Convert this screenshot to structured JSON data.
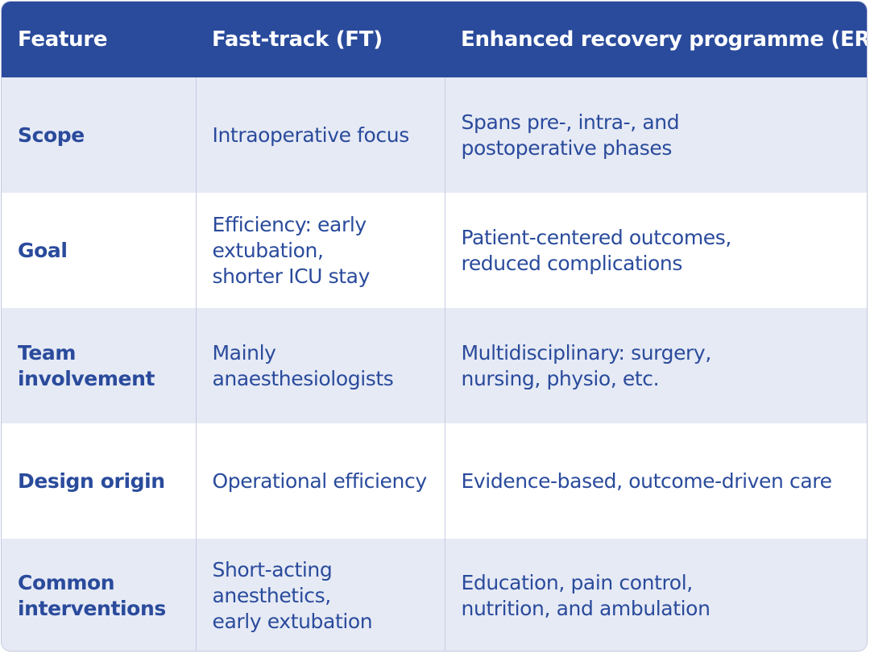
{
  "header": {
    "feature": "Feature",
    "fast_track": "Fast-track (FT)",
    "erp": "Enhanced recovery programme (ERP)"
  },
  "rows": [
    {
      "feature": "Scope",
      "fast_track": "Intraoperative focus",
      "erp": "Spans pre-, intra-, and\npostoperative phases"
    },
    {
      "feature": "Goal",
      "fast_track": "Efficiency: early\nextubation,\nshorter ICU stay",
      "erp": "Patient-centered outcomes,\nreduced complications"
    },
    {
      "feature": "Team\ninvolvement",
      "fast_track": "Mainly\nanaesthesiologists",
      "erp": "Multidisciplinary: surgery,\nnursing, physio, etc."
    },
    {
      "feature": "Design origin",
      "fast_track": "Operational efficiency",
      "erp": "Evidence-based, outcome-driven care"
    },
    {
      "feature": "Common\ninterventions",
      "fast_track": "Short-acting anesthetics,\nearly extubation",
      "erp": "Education, pain control,\nnutrition, and ambulation"
    }
  ],
  "colors": {
    "header_bg": "#2a4b9c",
    "text": "#2a4b9c",
    "row_shade": "#e6eaf5",
    "row_plain": "#ffffff"
  }
}
